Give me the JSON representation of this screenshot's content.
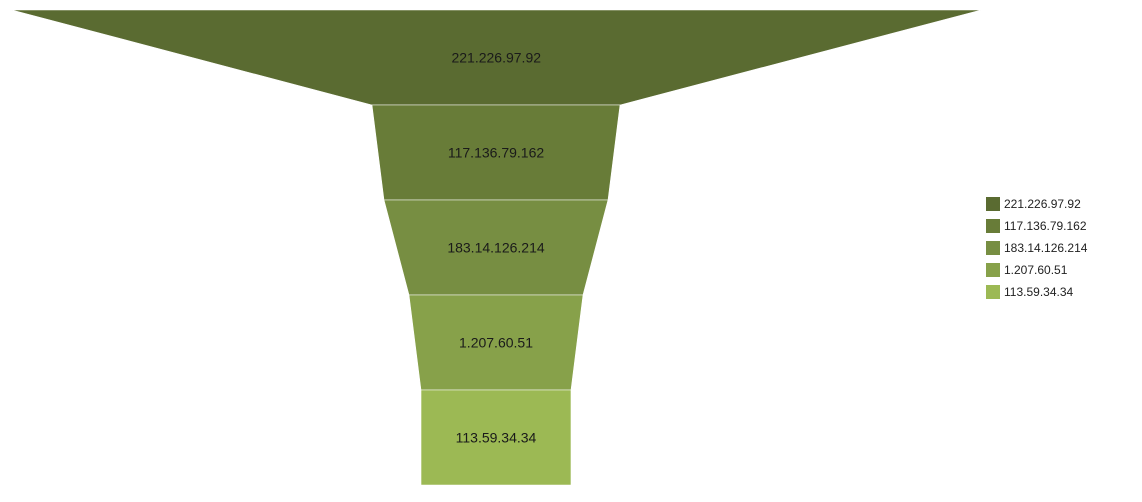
{
  "chart_data": {
    "type": "funnel",
    "legend_position": "right",
    "stages": [
      {
        "label": "221.226.97.92",
        "color": "#5a6b31"
      },
      {
        "label": "117.136.79.162",
        "color": "#687c38"
      },
      {
        "label": "183.14.126.214",
        "color": "#778e42"
      },
      {
        "label": "1.207.60.51",
        "color": "#87a14a"
      },
      {
        "label": "113.59.34.34",
        "color": "#9cb954"
      }
    ],
    "legend": {
      "items": [
        "221.226.97.92",
        "117.136.79.162",
        "183.14.126.214",
        "1.207.60.51",
        "113.59.34.34"
      ]
    }
  }
}
